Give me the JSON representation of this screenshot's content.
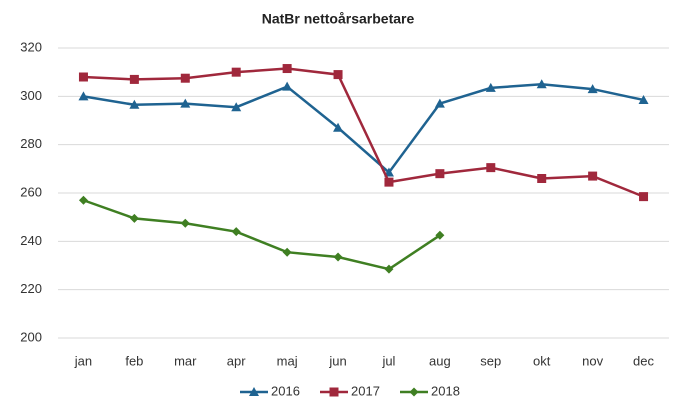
{
  "chart_data": {
    "type": "line",
    "title": "NatBr nettoårsarbetare",
    "categories": [
      "jan",
      "feb",
      "mar",
      "apr",
      "maj",
      "jun",
      "jul",
      "aug",
      "sep",
      "okt",
      "nov",
      "dec"
    ],
    "series": [
      {
        "name": "2016",
        "color": "#1f6391",
        "marker": "triangle",
        "values": [
          300,
          296.5,
          297,
          295.5,
          304,
          287,
          268.5,
          297,
          303.5,
          305,
          303,
          298.5
        ]
      },
      {
        "name": "2017",
        "color": "#a0283c",
        "marker": "square",
        "values": [
          308,
          307,
          307.5,
          310,
          311.5,
          309,
          264.5,
          268,
          270.5,
          266,
          267,
          258.5
        ]
      },
      {
        "name": "2018",
        "color": "#3f7f22",
        "marker": "diamond",
        "values": [
          257,
          249.5,
          247.5,
          244,
          235.5,
          233.5,
          228.5,
          242.5,
          null,
          null,
          null,
          null
        ]
      }
    ],
    "ylim": [
      200,
      320
    ],
    "yticks": [
      200,
      220,
      240,
      260,
      280,
      300,
      320
    ],
    "grid": true,
    "legend": "bottom"
  }
}
